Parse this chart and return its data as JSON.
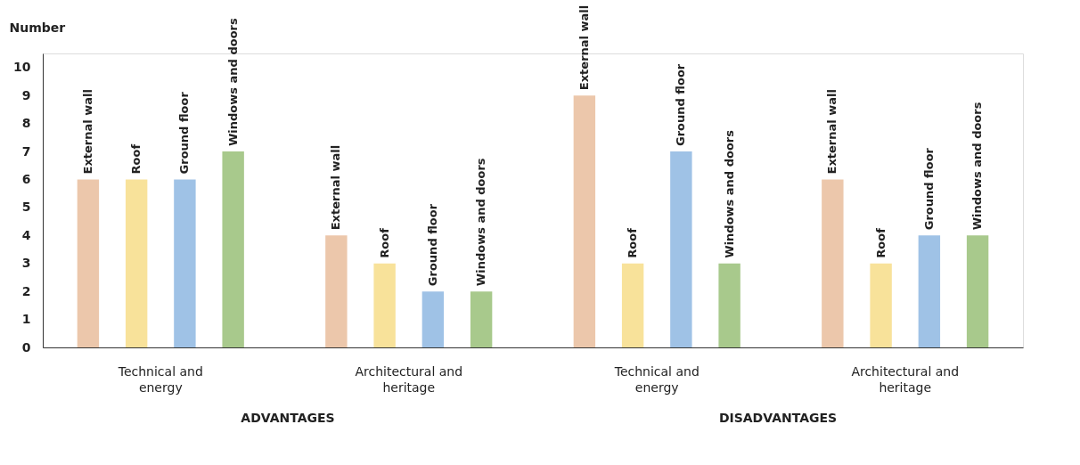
{
  "chart_data": {
    "type": "bar",
    "ylabel": "Number",
    "categories": [
      "Technical and energy",
      "Architectural and heritage",
      "Technical and energy",
      "Architectural and heritage"
    ],
    "series": [
      {
        "name": "External wall",
        "color": "#ecc7ab",
        "values": [
          6,
          4,
          9,
          6
        ]
      },
      {
        "name": "Roof",
        "color": "#f8e29a",
        "values": [
          6,
          3,
          3,
          3
        ]
      },
      {
        "name": "Ground floor",
        "color": "#9fc2e6",
        "values": [
          6,
          2,
          7,
          4
        ]
      },
      {
        "name": "Windows and doors",
        "color": "#a8c98c",
        "values": [
          7,
          2,
          3,
          4
        ]
      }
    ],
    "ylim": [
      0,
      10.5
    ],
    "yticks": [
      0,
      1,
      2,
      3,
      4,
      5,
      6,
      7,
      8,
      9,
      10
    ],
    "grid": false,
    "legend": false,
    "annotations": [
      "ADVANTAGES",
      "DISADVANTAGES"
    ]
  }
}
